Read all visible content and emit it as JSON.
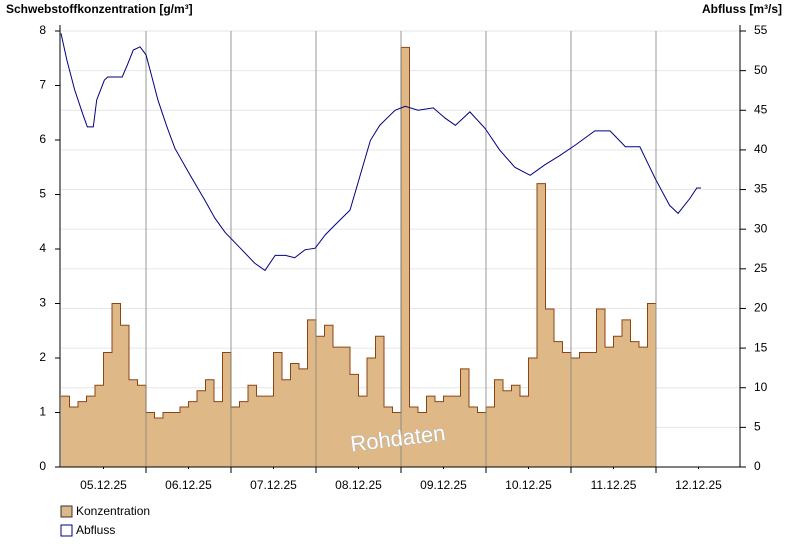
{
  "chart_data": {
    "type": "step-area-line",
    "y_title": "Schwebstoffkonzentration [g/m³]",
    "y2_title": "Abfluss [m³/s]",
    "annotation": "Rohdaten",
    "xlim": [
      0,
      8
    ],
    "xticks": [
      {
        "value": 0.5,
        "label": "05.12.25"
      },
      {
        "value": 1.5,
        "label": "06.12.25"
      },
      {
        "value": 2.5,
        "label": "07.12.25"
      },
      {
        "value": 3.5,
        "label": "08.12.25"
      },
      {
        "value": 4.5,
        "label": "09.12.25"
      },
      {
        "value": 5.5,
        "label": "10.12.25"
      },
      {
        "value": 6.5,
        "label": "11.12.25"
      },
      {
        "value": 7.5,
        "label": "12.12.25"
      }
    ],
    "ylim": [
      0,
      8
    ],
    "yticks": [
      0,
      1,
      2,
      3,
      4,
      5,
      6,
      7,
      8
    ],
    "y2lim": [
      0,
      55
    ],
    "y2ticks": [
      0,
      5,
      10,
      15,
      20,
      25,
      30,
      35,
      40,
      45,
      50,
      55
    ],
    "grid": true,
    "series": [
      {
        "name": "Konzentration",
        "kind": "step-area",
        "color": "#deb887",
        "edge_color": "#8b4513",
        "x": [
          0,
          0.1,
          0.2,
          0.3,
          0.4,
          0.5,
          0.6,
          0.7,
          0.8,
          0.9,
          1,
          1.1,
          1.2,
          1.3,
          1.4,
          1.5,
          1.6,
          1.7,
          1.8,
          1.9,
          2,
          2.1,
          2.2,
          2.3,
          2.4,
          2.5,
          2.6,
          2.7,
          2.8,
          2.9,
          3,
          3.1,
          3.2,
          3.3,
          3.4,
          3.5,
          3.6,
          3.7,
          3.8,
          3.9,
          4,
          4.1,
          4.2,
          4.3,
          4.4,
          4.5,
          4.6,
          4.7,
          4.8,
          4.9,
          5,
          5.1,
          5.2,
          5.3,
          5.4,
          5.5,
          5.6,
          5.7,
          5.8,
          5.9,
          6,
          6.1,
          6.2,
          6.3,
          6.4,
          6.5,
          6.6,
          6.7,
          6.8,
          6.9
        ],
        "values": [
          1.3,
          1.1,
          1.2,
          1.3,
          1.5,
          2.1,
          3.0,
          2.6,
          1.6,
          1.5,
          1.0,
          0.9,
          1.0,
          1.0,
          1.1,
          1.2,
          1.4,
          1.6,
          1.2,
          2.1,
          1.1,
          1.2,
          1.5,
          1.3,
          1.3,
          2.1,
          1.6,
          1.9,
          1.8,
          2.7,
          2.4,
          2.6,
          2.2,
          2.2,
          1.7,
          1.3,
          2.0,
          2.4,
          1.1,
          1.0,
          7.7,
          1.1,
          1.0,
          1.3,
          1.2,
          1.3,
          1.3,
          1.8,
          1.1,
          1.0,
          1.1,
          1.6,
          1.4,
          1.5,
          1.3,
          2.0,
          5.2,
          2.9,
          2.3,
          2.1,
          2.0,
          2.1,
          2.1,
          2.9,
          2.2,
          2.4,
          2.7,
          2.3,
          2.2,
          3.0
        ]
      },
      {
        "name": "Abfluss",
        "kind": "line",
        "axis": "y2",
        "color": "#000080",
        "x": [
          0,
          0.07,
          0.16,
          0.26,
          0.31,
          0.38,
          0.42,
          0.51,
          0.55,
          0.72,
          0.78,
          0.85,
          0.93,
          1.0,
          1.05,
          1.14,
          1.24,
          1.34,
          1.52,
          1.69,
          1.81,
          1.93,
          2.11,
          2.28,
          2.4,
          2.52,
          2.64,
          2.75,
          2.87,
          2.99,
          3.11,
          3.22,
          3.4,
          3.52,
          3.64,
          3.75,
          3.93,
          4.05,
          4.2,
          4.38,
          4.52,
          4.64,
          4.81,
          4.99,
          5.16,
          5.34,
          5.52,
          5.69,
          5.87,
          6.05,
          6.28,
          6.46,
          6.64,
          6.81,
          6.99,
          7.16,
          7.26,
          7.4,
          7.48,
          7.53
        ],
        "values": [
          54.7,
          51.3,
          47.6,
          44.4,
          42.9,
          42.9,
          46.3,
          48.8,
          49.2,
          49.2,
          50.7,
          52.6,
          53.0,
          52.0,
          50.0,
          46.3,
          43.1,
          40.2,
          36.8,
          33.7,
          31.4,
          29.6,
          27.6,
          25.7,
          24.8,
          26.7,
          26.7,
          26.4,
          27.4,
          27.6,
          29.3,
          30.5,
          32.4,
          36.8,
          41.2,
          43.1,
          45.0,
          45.5,
          45.0,
          45.3,
          44.0,
          43.1,
          44.8,
          42.7,
          40.0,
          37.8,
          36.8,
          38.1,
          39.3,
          40.6,
          42.4,
          42.4,
          40.4,
          40.4,
          36.4,
          33.0,
          32.0,
          33.9,
          35.2,
          35.2
        ]
      }
    ]
  }
}
